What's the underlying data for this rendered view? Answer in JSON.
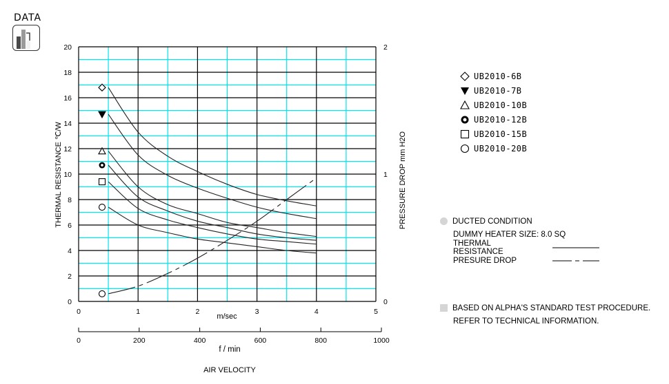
{
  "badge": {
    "label": "DATA",
    "icon": "bar-chart-icon"
  },
  "chart_data": {
    "type": "line",
    "title": "",
    "xlabel": "AIR VELOCITY",
    "x_primary": {
      "unit": "m/sec",
      "ticks": [
        "0",
        "1",
        "2",
        "3",
        "4",
        "5"
      ],
      "range": [
        0,
        5
      ]
    },
    "x_secondary": {
      "unit": "f / min",
      "ticks": [
        "0",
        "200",
        "400",
        "600",
        "800",
        "1000"
      ],
      "range": [
        0,
        1000
      ]
    },
    "ylabel_left": "THERMAL RESISTANCE  ℃/W",
    "yticks_left": [
      "0",
      "2",
      "4",
      "6",
      "8",
      "10",
      "12",
      "14",
      "16",
      "18",
      "20"
    ],
    "ylim_left": [
      0,
      20
    ],
    "ylabel_right": "PRESSURE DROP  mm H2O",
    "yticks_right": [
      "0",
      "1",
      "2"
    ],
    "ylim_right": [
      0,
      2
    ],
    "grid": true,
    "legend_position": "right",
    "x": [
      0.5,
      1.0,
      1.5,
      2.0,
      2.5,
      3.0,
      3.5,
      4.0
    ],
    "series": [
      {
        "name": "UB2010-6B",
        "marker": "diamond-open",
        "axis": "left",
        "values": [
          16.8,
          13.3,
          11.4,
          10.2,
          9.2,
          8.4,
          7.9,
          7.5
        ]
      },
      {
        "name": "UB2010-7B",
        "marker": "triangle-down-filled",
        "axis": "left",
        "values": [
          14.7,
          11.5,
          9.9,
          8.9,
          8.1,
          7.4,
          6.9,
          6.5
        ]
      },
      {
        "name": "UB2010-10B",
        "marker": "triangle-open",
        "axis": "left",
        "values": [
          11.8,
          9.0,
          7.6,
          6.9,
          6.2,
          5.8,
          5.4,
          5.1
        ]
      },
      {
        "name": "UB2010-12B",
        "marker": "circle-bold",
        "axis": "left",
        "values": [
          10.7,
          8.2,
          7.1,
          6.3,
          5.8,
          5.3,
          5.0,
          4.8
        ]
      },
      {
        "name": "UB2010-15B",
        "marker": "square-open",
        "axis": "left",
        "values": [
          9.4,
          7.3,
          6.4,
          5.8,
          5.3,
          4.9,
          4.7,
          4.5
        ]
      },
      {
        "name": "UB2010-20B",
        "marker": "circle-open",
        "axis": "left",
        "values": [
          7.4,
          6.0,
          5.4,
          4.9,
          4.6,
          4.3,
          4.0,
          3.8
        ]
      },
      {
        "name": "Pressure Drop",
        "marker": "circle-open",
        "axis": "right",
        "style": "dash-dot",
        "values": [
          0.06,
          0.12,
          0.22,
          0.34,
          0.48,
          0.63,
          0.8,
          0.97
        ]
      }
    ]
  },
  "legend": [
    {
      "marker": "diamond-open",
      "label": "UB2010-6B"
    },
    {
      "marker": "triangle-down-filled",
      "label": "UB2010-7B"
    },
    {
      "marker": "triangle-open",
      "label": "UB2010-10B"
    },
    {
      "marker": "circle-bold",
      "label": "UB2010-12B"
    },
    {
      "marker": "square-open",
      "label": "UB2010-15B"
    },
    {
      "marker": "circle-open",
      "label": "UB2010-20B"
    }
  ],
  "notes": {
    "condition": "DUCTED CONDITION",
    "heater": "DUMMY HEATER SIZE: 8.0 SQ",
    "thermal_label": "THERMAL RESISTANCE",
    "pressure_label": "PRESURE DROP",
    "procedure": "BASED ON ALPHA'S STANDARD TEST PROCEDURE.",
    "refer": "REFER TO TECHNICAL INFORMATION."
  },
  "colors": {
    "grid_major": "#000000",
    "grid_minor": "#00e5ee",
    "curve": "#222222",
    "note_marker": "#d5d5d5"
  }
}
